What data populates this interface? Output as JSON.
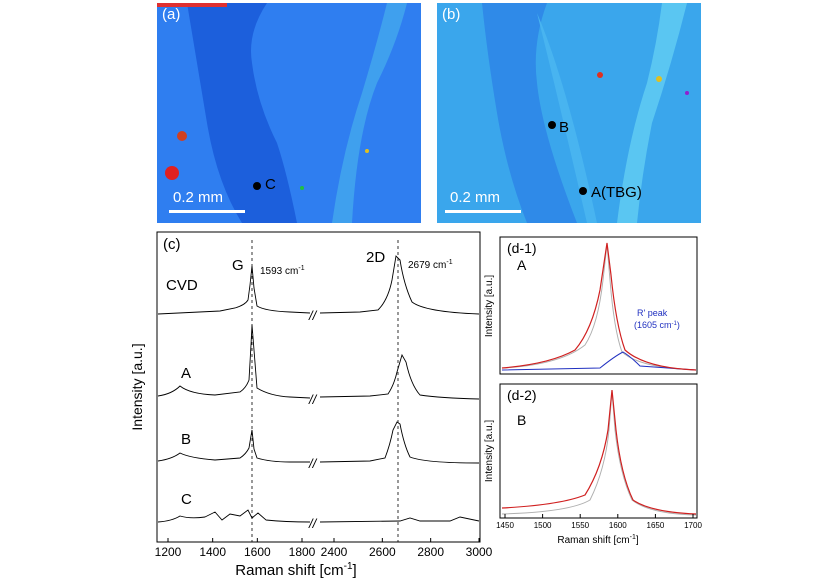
{
  "map_a": {
    "label": "(a)",
    "scale_label": "0.2 mm",
    "spot": "C"
  },
  "map_b": {
    "label": "(b)",
    "scale_label": "0.2 mm",
    "spots": [
      "B",
      "A(TBG)"
    ]
  },
  "panel_c": {
    "label": "(c)",
    "xlabel": "Raman shift [cm",
    "xlabel_sup": "-1",
    "xlabel_end": "]",
    "ylabel": "Intensity [a.u.]",
    "ticks_left": [
      "1200",
      "1400",
      "1600",
      "1800"
    ],
    "ticks_right": [
      "2400",
      "2600",
      "2800",
      "3000"
    ],
    "peak_G": "G",
    "peak_2D": "2D",
    "g_pos": "1593 cm",
    "twod_pos": "2679 cm",
    "unit_sup": "-1",
    "spectra": [
      "CVD",
      "A",
      "B",
      "C"
    ],
    "break_mark": "//"
  },
  "panel_d1": {
    "label": "(d-1)",
    "sample": "A",
    "ylabel": "Intensity [a.u.]",
    "peak_label": "R' peak",
    "peak_pos": "(1605 cm",
    "peak_sup": "-1",
    "peak_end": ")"
  },
  "panel_d2": {
    "label": "(d-2)",
    "sample": "B",
    "ylabel": "Intensity [a.u.]",
    "xlabel": "Raman shift [cm",
    "xlabel_sup": "-1",
    "xlabel_end": "]",
    "ticks": [
      "1450",
      "1500",
      "1550",
      "1600",
      "1650",
      "1700"
    ]
  },
  "chart_data": [
    {
      "type": "line",
      "title": "",
      "xlabel": "Raman shift [cm-1]",
      "ylabel": "Intensity [a.u.]",
      "xlim_left": [
        1200,
        1820
      ],
      "xlim_right": [
        2360,
        3000
      ],
      "annotations": [
        "G",
        "1593 cm-1",
        "2D",
        "2679 cm-1"
      ],
      "series": [
        {
          "name": "CVD",
          "peaks": [
            {
              "x": 1350,
              "y": 0.04
            },
            {
              "x": 1593,
              "y": 0.35
            },
            {
              "x": 2679,
              "y": 0.62
            }
          ]
        },
        {
          "name": "A",
          "peaks": [
            {
              "x": 1350,
              "y": 0.1
            },
            {
              "x": 1593,
              "y": 0.85
            },
            {
              "x": 2700,
              "y": 0.58
            }
          ]
        },
        {
          "name": "B",
          "peaks": [
            {
              "x": 1350,
              "y": 0.06
            },
            {
              "x": 1593,
              "y": 0.42
            },
            {
              "x": 2679,
              "y": 0.62
            }
          ]
        },
        {
          "name": "C",
          "peaks": [
            {
              "x": 1350,
              "y": 0.04
            },
            {
              "x": 1593,
              "y": 0.04
            },
            {
              "x": 2700,
              "y": 0.04
            }
          ]
        }
      ]
    },
    {
      "type": "line",
      "xlabel": "Raman shift [cm-1]",
      "ylabel": "Intensity [a.u.]",
      "xlim": [
        1450,
        1700
      ],
      "annotations": [
        "R' peak (1605 cm-1)"
      ],
      "series": [
        {
          "name": "A",
          "peaks": [
            {
              "x": 1583,
              "y": 1.0
            },
            {
              "x": 1605,
              "y": 0.14
            }
          ]
        },
        {
          "name": "B",
          "peaks": [
            {
              "x": 1590,
              "y": 1.0
            }
          ]
        }
      ]
    }
  ]
}
